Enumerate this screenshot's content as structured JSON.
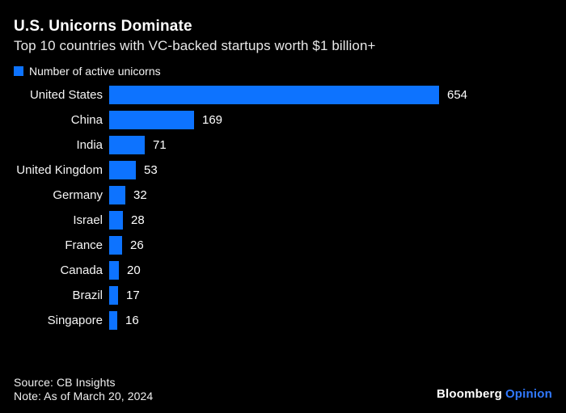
{
  "title": "U.S. Unicorns Dominate",
  "subtitle": "Top 10 countries with VC-backed startups worth $1 billion+",
  "legend": {
    "label": "Number of active unicorns"
  },
  "chart_data": {
    "type": "bar",
    "orientation": "horizontal",
    "title": "U.S. Unicorns Dominate",
    "subtitle": "Top 10 countries with VC-backed startups worth $1 billion+",
    "legend_entries": [
      "Number of active unicorns"
    ],
    "legend_position": "top-left",
    "categories": [
      "United States",
      "China",
      "India",
      "United Kingdom",
      "Germany",
      "Israel",
      "France",
      "Canada",
      "Brazil",
      "Singapore"
    ],
    "values": [
      654,
      169,
      71,
      53,
      32,
      28,
      26,
      20,
      17,
      16
    ],
    "xlabel": "",
    "ylabel": "",
    "xlim": [
      0,
      654
    ],
    "grid": false,
    "value_labels": true,
    "bar_color": "#0d73ff"
  },
  "footer": {
    "source": "Source: CB Insights",
    "note": "Note: As of March 20, 2024",
    "brand": {
      "name": "Bloomberg",
      "division": "Opinion"
    }
  },
  "colors": {
    "background": "#000000",
    "bar": "#0d73ff",
    "title_text": "#ffffff",
    "subtitle_text": "#e8e8e8",
    "label_text": "#f5f5f5",
    "brand_division": "#3179ff"
  }
}
